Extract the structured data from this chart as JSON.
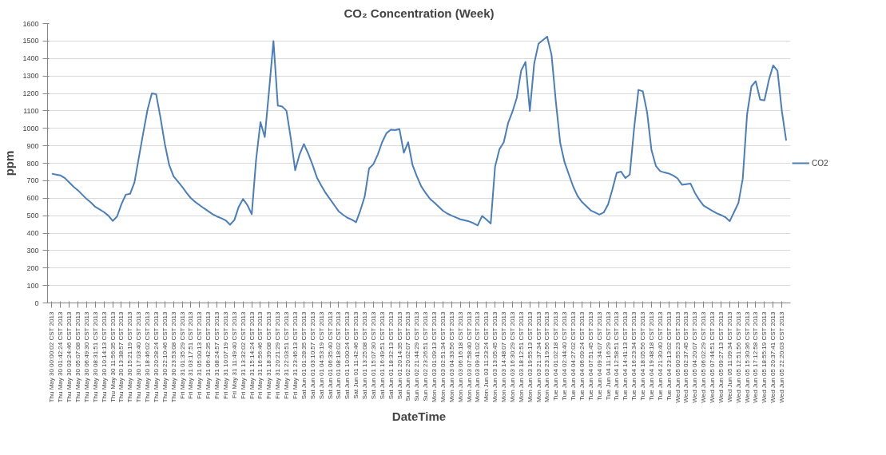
{
  "chart_data": {
    "type": "line",
    "title": "CO₂ Concentration (Week)",
    "xlabel": "DateTime",
    "ylabel": "ppm",
    "categories": [
      "Thu May 30 00:00:02 CST 2013",
      null,
      "Thu May 30 01:42:24 CST 2013",
      null,
      "Thu May 30 03:24:46 CST 2013",
      null,
      "Thu May 30 05:07:08 CST 2013",
      null,
      "Thu May 30 06:49:30 CST 2013",
      null,
      "Thu May 30 08:31:51 CST 2013",
      null,
      "Thu May 30 10:14:13 CST 2013",
      null,
      "Thu May 30 11:56:35 CST 2013",
      null,
      "Thu May 30 13:38:57 CST 2013",
      null,
      "Thu May 30 15:21:19 CST 2013",
      null,
      "Thu May 30 17:03:40 CST 2013",
      null,
      "Thu May 30 18:46:02 CST 2013",
      null,
      "Thu May 30 20:28:24 CST 2013",
      null,
      "Thu May 30 22:10:46 CST 2013",
      null,
      "Thu May 30 23:53:08 CST 2013",
      null,
      "Fri May 31 01:35:29 CST 2013",
      null,
      "Fri May 31 03:17:51 CST 2013",
      null,
      "Fri May 31 05:00:13 CST 2013",
      null,
      "Fri May 31 06:42:35 CST 2013",
      null,
      "Fri May 31 08:24:57 CST 2013",
      null,
      "Fri May 31 10:07:19 CST 2013",
      null,
      "Fri May 31 11:49:40 CST 2013",
      null,
      "Fri May 31 13:32:02 CST 2013",
      null,
      "Fri May 31 15:14:24 CST 2013",
      null,
      "Fri May 31 16:56:46 CST 2013",
      null,
      "Fri May 31 18:39:08 CST 2013",
      null,
      "Fri May 31 20:21:29 CST 2013",
      null,
      "Fri May 31 22:03:51 CST 2013",
      null,
      "Fri May 31 23:46:13 CST 2013",
      null,
      "Sat Jun 01 01:28:35 CST 2013",
      null,
      "Sat Jun 01 03:10:57 CST 2013",
      null,
      "Sat Jun 01 04:53:19 CST 2013",
      null,
      "Sat Jun 01 06:35:40 CST 2013",
      null,
      "Sat Jun 01 08:18:02 CST 2013",
      null,
      "Sat Jun 01 10:00:24 CST 2013",
      null,
      "Sat Jun 01 11:42:46 CST 2013",
      null,
      "Sat Jun 01 13:25:08 CST 2013",
      null,
      "Sat Jun 01 15:07:30 CST 2013",
      null,
      "Sat Jun 01 16:49:51 CST 2013",
      null,
      "Sat Jun 01 18:32:13 CST 2013",
      null,
      "Sat Jun 01 20:14:35 CST 2013",
      null,
      "Sun Jun 02 20:02:07 CST 2013",
      null,
      "Sun Jun 02 21:44:29 CST 2013",
      null,
      "Sun Jun 02 23:26:51 CST 2013",
      null,
      "Mon Jun 03 01:09:13 CST 2013",
      null,
      "Mon Jun 03 02:51:34 CST 2013",
      null,
      "Mon Jun 03 04:33:56 CST 2013",
      null,
      "Mon Jun 03 06:16:18 CST 2013",
      null,
      "Mon Jun 03 07:58:40 CST 2013",
      null,
      "Mon Jun 03 09:41:02 CST 2013",
      null,
      "Mon Jun 03 11:23:24 CST 2013",
      null,
      "Mon Jun 03 13:05:45 CST 2013",
      null,
      "Mon Jun 03 14:48:07 CST 2013",
      null,
      "Mon Jun 03 16:30:29 CST 2013",
      null,
      "Mon Jun 03 18:12:51 CST 2013",
      null,
      "Mon Jun 03 19:55:13 CST 2013",
      null,
      "Mon Jun 03 21:37:34 CST 2013",
      null,
      "Mon Jun 03 23:19:56 CST 2013",
      null,
      "Tue Jun 04 01:02:18 CST 2013",
      null,
      "Tue Jun 04 02:44:40 CST 2013",
      null,
      "Tue Jun 04 04:27:02 CST 2013",
      null,
      "Tue Jun 04 06:09:24 CST 2013",
      null,
      "Tue Jun 04 07:51:45 CST 2013",
      null,
      "Tue Jun 04 09:34:07 CST 2013",
      null,
      "Tue Jun 04 11:16:29 CST 2013",
      null,
      "Tue Jun 04 12:58:51 CST 2013",
      null,
      "Tue Jun 04 14:41:13 CST 2013",
      null,
      "Tue Jun 04 16:23:34 CST 2013",
      null,
      "Tue Jun 04 18:05:56 CST 2013",
      null,
      "Tue Jun 04 19:48:18 CST 2013",
      null,
      "Tue Jun 04 21:30:40 CST 2013",
      null,
      "Tue Jun 04 23:13:02 CST 2013",
      null,
      "Wed Jun 05 00:55:23 CST 2013",
      null,
      "Wed Jun 05 02:37:45 CST 2013",
      null,
      "Wed Jun 05 04:20:07 CST 2013",
      null,
      "Wed Jun 05 06:02:29 CST 2013",
      null,
      "Wed Jun 05 07:44:51 CST 2013",
      null,
      "Wed Jun 05 09:27:13 CST 2013",
      null,
      "Wed Jun 05 11:09:34 CST 2013",
      null,
      "Wed Jun 05 12:51:56 CST 2013",
      null,
      "Wed Jun 05 15:30:36 CST 2013",
      null,
      "Wed Jun 05 17:12:58 CST 2013",
      null,
      "Wed Jun 05 18:55:19 CST 2013",
      null,
      "Wed Jun 05 20:37:41 CST 2013",
      null,
      "Wed Jun 05 22:20:03 CST 2013",
      null
    ],
    "series": [
      {
        "name": "CO2",
        "color": "#4a7ebb",
        "values": [
          740,
          735,
          730,
          715,
          690,
          665,
          645,
          620,
          595,
          575,
          550,
          535,
          520,
          500,
          470,
          495,
          565,
          620,
          625,
          690,
          830,
          970,
          1105,
          1200,
          1195,
          1060,
          910,
          790,
          725,
          695,
          665,
          630,
          600,
          578,
          560,
          542,
          525,
          508,
          495,
          485,
          473,
          448,
          475,
          550,
          595,
          560,
          508,
          820,
          1035,
          950,
          1220,
          1500,
          1130,
          1125,
          1100,
          940,
          760,
          850,
          910,
          855,
          790,
          718,
          672,
          630,
          595,
          560,
          525,
          505,
          488,
          477,
          462,
          530,
          610,
          770,
          795,
          850,
          920,
          972,
          992,
          990,
          995,
          860,
          920,
          790,
          725,
          668,
          630,
          597,
          575,
          552,
          528,
          512,
          500,
          490,
          479,
          473,
          467,
          457,
          444,
          498,
          478,
          455,
          780,
          880,
          920,
          1030,
          1095,
          1175,
          1330,
          1380,
          1100,
          1370,
          1485,
          1505,
          1525,
          1420,
          1150,
          915,
          805,
          735,
          665,
          612,
          578,
          554,
          530,
          518,
          506,
          518,
          563,
          650,
          745,
          752,
          715,
          735,
          1000,
          1220,
          1212,
          1090,
          875,
          785,
          755,
          747,
          741,
          730,
          713,
          677,
          680,
          683,
          630,
          590,
          557,
          542,
          527,
          514,
          503,
          491,
          468,
          520,
          572,
          710,
          1080,
          1240,
          1270,
          1165,
          1160,
          1275,
          1360,
          1330,
          1100,
          930
        ]
      }
    ],
    "ylim": [
      0,
      1600
    ],
    "yticks": [
      0,
      100,
      200,
      300,
      400,
      500,
      600,
      700,
      800,
      900,
      1000,
      1100,
      1200,
      1300,
      1400,
      1500,
      1600
    ],
    "grid": "y",
    "legend": "right",
    "marker": "none",
    "line_style": "solid"
  }
}
